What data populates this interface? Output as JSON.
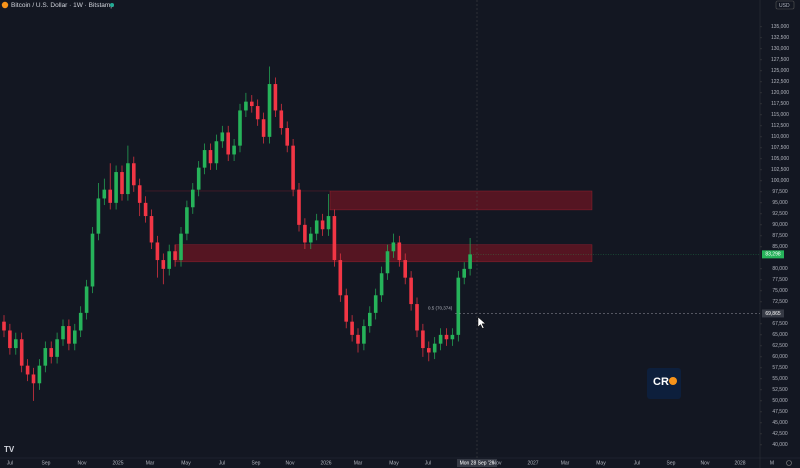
{
  "header": {
    "title": "Bitcoin / U.S. Dollar · 1W · Bitstamp",
    "currency": "USD"
  },
  "logo_text": "CR",
  "chart_data": {
    "type": "candlestick",
    "up_color": "#26b35a",
    "down_color": "#f23645",
    "open": [
      68000,
      66000,
      62000,
      64000,
      58000,
      56000,
      54000,
      58000,
      62000,
      60000,
      64000,
      67000,
      63000,
      66000,
      70000,
      76000,
      88000,
      96000,
      98000,
      95000,
      102000,
      97000,
      104000,
      99000,
      95000,
      92000,
      86000,
      82000,
      80000,
      84000,
      82000,
      88000,
      94000,
      98000,
      103000,
      107000,
      104000,
      109000,
      111000,
      106000,
      108000,
      116000,
      118000,
      117000,
      114000,
      110000,
      122000,
      116000,
      112000,
      108000,
      98000,
      90000,
      86000,
      88000,
      91000,
      89000,
      92000,
      82000,
      74000,
      68000,
      65000,
      63000,
      67000,
      70000,
      74000,
      79000,
      84000,
      86000,
      82000,
      78000,
      72000,
      66000,
      62000,
      61000,
      63000,
      65000,
      64000,
      65000,
      78000,
      80000
    ],
    "high": [
      69500,
      67500,
      65500,
      65500,
      59500,
      57500,
      59500,
      63500,
      63500,
      65500,
      68500,
      68500,
      67500,
      71500,
      77500,
      89500,
      99500,
      100500,
      104000,
      103500,
      103500,
      108000,
      105500,
      100500,
      96500,
      93500,
      87500,
      83500,
      85500,
      85500,
      89500,
      95500,
      99500,
      104500,
      108500,
      108500,
      110500,
      112500,
      112500,
      109500,
      117500,
      120000,
      119500,
      118500,
      115500,
      126000,
      123500,
      117500,
      113500,
      109500,
      99500,
      91500,
      89500,
      92500,
      92500,
      97000,
      93500,
      83500,
      75500,
      69500,
      66500,
      68500,
      71500,
      75500,
      80500,
      85500,
      88000,
      87500,
      83500,
      79500,
      73500,
      67500,
      63500,
      64500,
      66500,
      66500,
      66500,
      79500,
      81500,
      87000
    ],
    "low": [
      64500,
      60500,
      60500,
      56500,
      54500,
      50000,
      52500,
      56500,
      58500,
      58500,
      62500,
      61500,
      61500,
      64500,
      68500,
      74500,
      86500,
      94500,
      93500,
      93500,
      95500,
      95500,
      97500,
      92000,
      90500,
      84500,
      78000,
      76500,
      78500,
      80500,
      80500,
      86500,
      92500,
      96500,
      101500,
      102500,
      102500,
      107500,
      104500,
      104500,
      106500,
      114500,
      115500,
      112500,
      108500,
      108500,
      114500,
      110500,
      106500,
      96500,
      88500,
      84500,
      84500,
      86500,
      87500,
      87500,
      80500,
      72500,
      66500,
      63500,
      61000,
      61500,
      65500,
      68500,
      72500,
      77500,
      82500,
      80500,
      76500,
      70500,
      64500,
      60000,
      59000,
      59500,
      61500,
      62500,
      62500,
      63500,
      76500,
      78500
    ],
    "close": [
      66000,
      62000,
      64000,
      58000,
      56000,
      54000,
      58000,
      62000,
      60000,
      64000,
      67000,
      63000,
      66000,
      70000,
      76000,
      88000,
      96000,
      98000,
      95000,
      102000,
      97000,
      104000,
      99000,
      95000,
      92000,
      86000,
      82000,
      80000,
      84000,
      82000,
      88000,
      94000,
      98000,
      103000,
      107000,
      104000,
      109000,
      111000,
      106000,
      108000,
      116000,
      118000,
      117000,
      114000,
      110000,
      122000,
      116000,
      112000,
      108000,
      98000,
      90000,
      86000,
      88000,
      91000,
      89000,
      92000,
      82000,
      74000,
      68000,
      65000,
      63000,
      67000,
      70000,
      74000,
      79000,
      84000,
      86000,
      82000,
      78000,
      72000,
      66000,
      62000,
      61000,
      63000,
      65000,
      64000,
      65000,
      78000,
      80000,
      83298
    ],
    "x_labels": [
      "Jul",
      "Sep",
      "Nov",
      "2025",
      "Mar",
      "May",
      "Jul",
      "Sep",
      "Nov",
      "2026",
      "Mar",
      "May",
      "Jul",
      "Mon 28 Sep '26",
      "Nov",
      "2027",
      "Mar",
      "May",
      "Jul",
      "Sep",
      "Nov",
      "2028",
      "M"
    ],
    "ylim": [
      37700,
      141100
    ],
    "yticks": [
      {
        "value": 135000,
        "label": "135,000"
      },
      {
        "value": 132500,
        "label": "132,500"
      },
      {
        "value": 130000,
        "label": "130,000"
      },
      {
        "value": 127500,
        "label": "127,500"
      },
      {
        "value": 125000,
        "label": "125,000"
      },
      {
        "value": 122500,
        "label": "122,500"
      },
      {
        "value": 120000,
        "label": "120,000"
      },
      {
        "value": 117500,
        "label": "117,500"
      },
      {
        "value": 115000,
        "label": "115,000"
      },
      {
        "value": 112500,
        "label": "112,500"
      },
      {
        "value": 110000,
        "label": "110,000"
      },
      {
        "value": 107500,
        "label": "107,500"
      },
      {
        "value": 105000,
        "label": "105,000"
      },
      {
        "value": 102500,
        "label": "102,500"
      },
      {
        "value": 100000,
        "label": "100,000"
      },
      {
        "value": 97500,
        "label": "97,500"
      },
      {
        "value": 95000,
        "label": "95,000"
      },
      {
        "value": 92500,
        "label": "92,500"
      },
      {
        "value": 90000,
        "label": "90,000"
      },
      {
        "value": 87500,
        "label": "87,500"
      },
      {
        "value": 85000,
        "label": "85,000"
      },
      {
        "value": 80000,
        "label": "80,000"
      },
      {
        "value": 77500,
        "label": "77,500"
      },
      {
        "value": 75000,
        "label": "75,000"
      },
      {
        "value": 72500,
        "label": "72,500"
      },
      {
        "value": 67500,
        "label": "67,500"
      },
      {
        "value": 65000,
        "label": "65,000"
      },
      {
        "value": 62500,
        "label": "62,500"
      },
      {
        "value": 60000,
        "label": "60,000"
      },
      {
        "value": 57500,
        "label": "57,500"
      },
      {
        "value": 55000,
        "label": "55,000"
      },
      {
        "value": 52500,
        "label": "52,500"
      },
      {
        "value": 50000,
        "label": "50,000"
      },
      {
        "value": 47500,
        "label": "47,500"
      },
      {
        "value": 45000,
        "label": "45,000"
      },
      {
        "value": 42500,
        "label": "42,500"
      },
      {
        "value": 40000,
        "label": "40,000"
      }
    ],
    "zones": [
      {
        "high": 97700,
        "low": 93400
      },
      {
        "high": 85500,
        "low": 81600
      }
    ],
    "last_price": {
      "value": 83298,
      "label": "83,298"
    },
    "crosshair": {
      "value": 69865,
      "label": "69,865"
    },
    "fib_label": "0.5 (70,374)"
  }
}
